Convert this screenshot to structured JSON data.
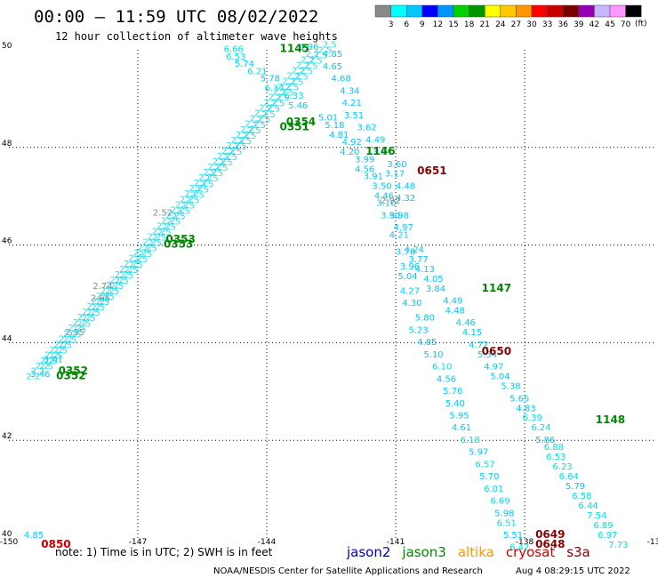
{
  "title": "00:00 — 11:59 UTC 08/02/2022",
  "subtitle": "12 hour collection of altimeter wave heights",
  "note": "note: 1) Time is in UTC; 2) SWH is in feet",
  "credit": "NOAA/NESDIS Center for Satellite Applications and Research",
  "timestamp": "Aug  4 08:29:15 UTC 2022",
  "legend": {
    "unit": "(ft)",
    "colors": [
      "#888888",
      "#00ffff",
      "#00c8ff",
      "#0000ff",
      "#0096ff",
      "#00d200",
      "#009600",
      "#ffff00",
      "#ffc800",
      "#ff9600",
      "#ff0000",
      "#c80000",
      "#780000",
      "#9600b4",
      "#c8b4ff",
      "#ff96ff",
      "#000000"
    ],
    "labels": [
      "3",
      "6",
      "9",
      "12",
      "15",
      "18",
      "21",
      "24",
      "27",
      "30",
      "33",
      "36",
      "39",
      "42",
      "45",
      "70"
    ]
  },
  "satellites": [
    {
      "name": "jason2",
      "color": "#0000cc"
    },
    {
      "name": "jason3",
      "color": "#008800"
    },
    {
      "name": "altika",
      "color": "#ff9600"
    },
    {
      "name": "cryosat",
      "color": "#cc0000"
    },
    {
      "name": "s3a",
      "color": "#880000"
    }
  ],
  "chart_data": {
    "type": "scatter",
    "xlim": [
      -150,
      -135
    ],
    "ylim": [
      40,
      50
    ],
    "x_ticks": [
      "-150",
      "-147",
      "-144",
      "-141",
      "-138",
      "-13"
    ],
    "y_ticks": [
      "50",
      "48",
      "46",
      "44",
      "42",
      "40"
    ],
    "grid": true,
    "tracks": [
      {
        "points": [
          {
            "lon": -145.0,
            "lat": 49.95,
            "v": "6.66"
          },
          {
            "lon": -144.95,
            "lat": 49.8,
            "v": "6.53"
          },
          {
            "lon": -144.75,
            "lat": 49.65,
            "v": "5.74"
          },
          {
            "lon": -144.45,
            "lat": 49.5,
            "v": "6.21"
          },
          {
            "lon": -144.15,
            "lat": 49.35,
            "v": "5.78"
          },
          {
            "lon": -144.05,
            "lat": 49.15,
            "v": "6.37"
          },
          {
            "lon": -143.6,
            "lat": 49.0,
            "v": "6.33"
          },
          {
            "lon": -143.5,
            "lat": 48.8,
            "v": "5.46"
          },
          {
            "lon": -142.8,
            "lat": 48.55,
            "v": "5.01"
          },
          {
            "lon": -142.65,
            "lat": 48.4,
            "v": "5.18"
          },
          {
            "lon": -142.55,
            "lat": 48.2,
            "v": "4.81"
          },
          {
            "lon": -142.25,
            "lat": 48.05,
            "v": "4.92"
          },
          {
            "lon": -142.3,
            "lat": 47.85,
            "v": "4.20"
          },
          {
            "lon": -141.95,
            "lat": 47.7,
            "v": "3.99"
          },
          {
            "lon": -141.95,
            "lat": 47.5,
            "v": "4.56"
          },
          {
            "lon": -141.75,
            "lat": 47.35,
            "v": "3.91"
          },
          {
            "lon": -141.55,
            "lat": 47.15,
            "v": "3.50"
          },
          {
            "lon": -141.5,
            "lat": 46.95,
            "v": "4.46"
          },
          {
            "lon": -141.45,
            "lat": 46.8,
            "v": "3.10"
          },
          {
            "lon": -141.35,
            "lat": 46.55,
            "v": "3.90"
          },
          {
            "lon": -141.15,
            "lat": 46.15,
            "v": "4.21"
          },
          {
            "lon": -141.0,
            "lat": 45.8,
            "v": "3.78"
          },
          {
            "lon": -140.9,
            "lat": 45.5,
            "v": "3.96"
          },
          {
            "lon": -140.95,
            "lat": 45.3,
            "v": "5.04"
          },
          {
            "lon": -140.9,
            "lat": 45.0,
            "v": "4.27"
          },
          {
            "lon": -140.85,
            "lat": 44.75,
            "v": "4.30"
          },
          {
            "lon": -140.55,
            "lat": 44.45,
            "v": "5.80"
          },
          {
            "lon": -140.7,
            "lat": 44.2,
            "v": "5.23"
          },
          {
            "lon": -140.5,
            "lat": 43.95,
            "v": "4.85"
          },
          {
            "lon": -140.35,
            "lat": 43.7,
            "v": "5.10"
          },
          {
            "lon": -140.15,
            "lat": 43.45,
            "v": "6.10"
          },
          {
            "lon": -140.05,
            "lat": 43.2,
            "v": "4.56"
          },
          {
            "lon": -139.9,
            "lat": 42.95,
            "v": "5.76"
          },
          {
            "lon": -139.85,
            "lat": 42.7,
            "v": "5.40"
          },
          {
            "lon": -139.75,
            "lat": 42.45,
            "v": "5.95"
          },
          {
            "lon": -139.7,
            "lat": 42.2,
            "v": "4.61"
          },
          {
            "lon": -139.5,
            "lat": 41.95,
            "v": "6.18"
          },
          {
            "lon": -139.3,
            "lat": 41.7,
            "v": "5.97"
          },
          {
            "lon": -139.15,
            "lat": 41.45,
            "v": "6.57"
          },
          {
            "lon": -139.05,
            "lat": 41.2,
            "v": "5.70"
          },
          {
            "lon": -138.95,
            "lat": 40.95,
            "v": "6.01"
          },
          {
            "lon": -138.8,
            "lat": 40.7,
            "v": "6.69"
          },
          {
            "lon": -138.7,
            "lat": 40.45,
            "v": "5.98"
          },
          {
            "lon": -138.65,
            "lat": 40.25,
            "v": "6.51"
          },
          {
            "lon": -138.5,
            "lat": 40.0,
            "v": "5.51"
          },
          {
            "lon": -138.35,
            "lat": 39.75,
            "v": "6.42"
          }
        ]
      },
      {
        "points": [
          {
            "lon": -143.25,
            "lat": 50.0,
            "v": "4.96"
          },
          {
            "lon": -142.7,
            "lat": 49.85,
            "v": "4.85"
          },
          {
            "lon": -142.7,
            "lat": 49.6,
            "v": "4.65"
          },
          {
            "lon": -142.5,
            "lat": 49.35,
            "v": "4.68"
          },
          {
            "lon": -142.3,
            "lat": 49.1,
            "v": "4.34"
          },
          {
            "lon": -142.25,
            "lat": 48.85,
            "v": "4.21"
          },
          {
            "lon": -142.2,
            "lat": 48.6,
            "v": "3.51"
          },
          {
            "lon": -141.9,
            "lat": 48.35,
            "v": "3.62"
          },
          {
            "lon": -141.7,
            "lat": 48.1,
            "v": "4.49"
          },
          {
            "lon": -141.55,
            "lat": 47.85,
            "v": "3.64"
          },
          {
            "lon": -141.2,
            "lat": 47.6,
            "v": "3.60"
          },
          {
            "lon": -141.25,
            "lat": 47.4,
            "v": "3.17"
          },
          {
            "lon": -141.0,
            "lat": 47.15,
            "v": "4.48"
          },
          {
            "lon": -141.0,
            "lat": 46.9,
            "v": "4.32"
          },
          {
            "lon": -141.15,
            "lat": 46.55,
            "v": "3.98"
          },
          {
            "lon": -141.05,
            "lat": 46.3,
            "v": "4.97"
          },
          {
            "lon": -140.8,
            "lat": 45.85,
            "v": "4.24"
          },
          {
            "lon": -140.7,
            "lat": 45.65,
            "v": "3.77"
          },
          {
            "lon": -140.55,
            "lat": 45.45,
            "v": "4.13"
          },
          {
            "lon": -140.35,
            "lat": 45.25,
            "v": "4.05"
          },
          {
            "lon": -140.3,
            "lat": 45.05,
            "v": "3.84"
          },
          {
            "lon": -139.9,
            "lat": 44.8,
            "v": "4.49"
          },
          {
            "lon": -139.85,
            "lat": 44.6,
            "v": "4.48"
          },
          {
            "lon": -139.6,
            "lat": 44.35,
            "v": "4.46"
          },
          {
            "lon": -139.45,
            "lat": 44.15,
            "v": "4.15"
          },
          {
            "lon": -139.3,
            "lat": 43.9,
            "v": "4.72"
          },
          {
            "lon": -139.1,
            "lat": 43.7,
            "v": "5.34"
          },
          {
            "lon": -138.95,
            "lat": 43.45,
            "v": "4.97"
          },
          {
            "lon": -138.8,
            "lat": 43.25,
            "v": "5.04"
          },
          {
            "lon": -138.55,
            "lat": 43.05,
            "v": "5.38"
          },
          {
            "lon": -138.35,
            "lat": 42.8,
            "v": "5.65"
          },
          {
            "lon": -138.2,
            "lat": 42.6,
            "v": "4.83"
          },
          {
            "lon": -138.05,
            "lat": 42.4,
            "v": "6.39"
          },
          {
            "lon": -137.85,
            "lat": 42.2,
            "v": "6.24"
          },
          {
            "lon": -137.75,
            "lat": 41.95,
            "v": "5.86"
          },
          {
            "lon": -137.55,
            "lat": 41.8,
            "v": "6.88"
          },
          {
            "lon": -137.5,
            "lat": 41.6,
            "v": "6.53"
          },
          {
            "lon": -137.35,
            "lat": 41.4,
            "v": "6.23"
          },
          {
            "lon": -137.2,
            "lat": 41.2,
            "v": "6.64"
          },
          {
            "lon": -137.05,
            "lat": 41.0,
            "v": "5.79"
          },
          {
            "lon": -136.9,
            "lat": 40.8,
            "v": "6.58"
          },
          {
            "lon": -136.75,
            "lat": 40.6,
            "v": "6.44"
          },
          {
            "lon": -136.55,
            "lat": 40.4,
            "v": "7.54"
          },
          {
            "lon": -136.4,
            "lat": 40.2,
            "v": "6.89"
          },
          {
            "lon": -136.3,
            "lat": 40.0,
            "v": "6.97"
          },
          {
            "lon": -136.05,
            "lat": 39.8,
            "v": "7.73"
          }
        ]
      },
      {
        "points": [
          {
            "lon": -146.65,
            "lat": 46.6,
            "v": "2.52"
          },
          {
            "lon": -148.05,
            "lat": 45.1,
            "v": "2.74"
          },
          {
            "lon": -148.1,
            "lat": 44.85,
            "v": "2.65"
          },
          {
            "lon": -148.7,
            "lat": 44.15,
            "v": "2.35"
          },
          {
            "lon": -149.2,
            "lat": 43.6,
            "v": "3.01"
          },
          {
            "lon": -149.5,
            "lat": 43.3,
            "v": "3.46"
          },
          {
            "lon": -149.65,
            "lat": 40.0,
            "v": "4.85"
          }
        ]
      },
      {
        "points": [
          {
            "lon": -141.35,
            "lat": 46.85,
            "v": "2.92"
          }
        ]
      }
    ],
    "time_labels": [
      {
        "lon": -143.7,
        "lat": 49.95,
        "t": "1145",
        "sat": "jason3"
      },
      {
        "lon": -143.55,
        "lat": 48.45,
        "t": "0354",
        "sat": "jason3"
      },
      {
        "lon": -143.7,
        "lat": 48.35,
        "t": "0351",
        "sat": "jason3"
      },
      {
        "lon": -146.35,
        "lat": 46.05,
        "t": "0353",
        "sat": "jason3"
      },
      {
        "lon": -146.4,
        "lat": 45.95,
        "t": "0353",
        "sat": "jason3"
      },
      {
        "lon": -148.85,
        "lat": 43.35,
        "t": "0352",
        "sat": "jason3"
      },
      {
        "lon": -148.9,
        "lat": 43.25,
        "t": "0352",
        "sat": "jason3"
      },
      {
        "lon": -141.7,
        "lat": 47.85,
        "t": "1146",
        "sat": "jason3"
      },
      {
        "lon": -139.0,
        "lat": 45.05,
        "t": "1147",
        "sat": "jason3"
      },
      {
        "lon": -136.35,
        "lat": 42.35,
        "t": "1148",
        "sat": "jason3"
      },
      {
        "lon": -140.5,
        "lat": 47.45,
        "t": "0651",
        "sat": "s3a"
      },
      {
        "lon": -139.0,
        "lat": 43.75,
        "t": "0650",
        "sat": "s3a"
      },
      {
        "lon": -137.75,
        "lat": 40.0,
        "t": "0649",
        "sat": "s3a"
      },
      {
        "lon": -137.75,
        "lat": 39.8,
        "t": "0648",
        "sat": "s3a"
      },
      {
        "lon": -149.25,
        "lat": 39.8,
        "t": "0850",
        "sat": "cryosat"
      }
    ]
  }
}
